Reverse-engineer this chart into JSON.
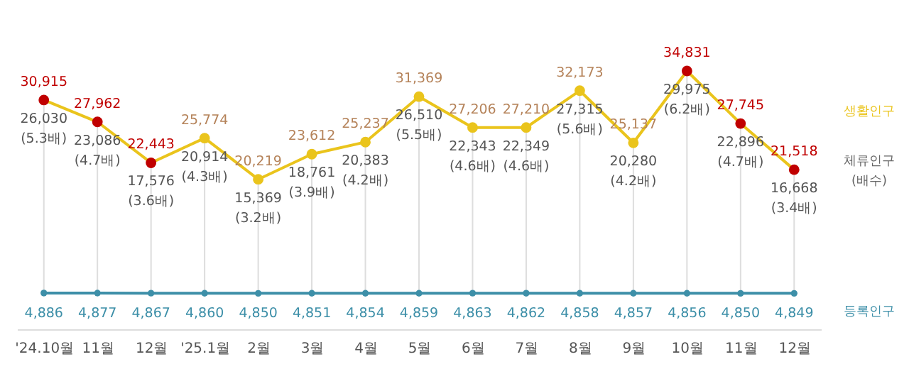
{
  "chart_data": {
    "type": "line",
    "categories": [
      "'24.10월",
      "11월",
      "12월",
      "'25.1월",
      "2월",
      "3월",
      "4월",
      "5월",
      "6월",
      "7월",
      "8월",
      "9월",
      "10월",
      "11월",
      "12월"
    ],
    "series": [
      {
        "name": "생활인구",
        "color": "#eac41c",
        "values": [
          30915,
          27962,
          22443,
          25774,
          20219,
          23612,
          25237,
          31369,
          27206,
          27210,
          32173,
          25137,
          34831,
          27745,
          21518
        ],
        "value_labels": [
          "30,915",
          "27,962",
          "22,443",
          "25,774",
          "20,219",
          "23,612",
          "25,237",
          "31,369",
          "27,206",
          "27,210",
          "32,173",
          "25,137",
          "34,831",
          "27,745",
          "21,518"
        ],
        "colors": [
          "#c00000",
          "#c00000",
          "#c00000",
          "#eac41c",
          "#eac41c",
          "#eac41c",
          "#eac41c",
          "#eac41c",
          "#eac41c",
          "#eac41c",
          "#eac41c",
          "#eac41c",
          "#c00000",
          "#c00000",
          "#c00000"
        ]
      },
      {
        "name": "등록인구",
        "color": "#3d8fa8",
        "values": [
          4886,
          4877,
          4867,
          4860,
          4850,
          4851,
          4854,
          4859,
          4863,
          4862,
          4858,
          4857,
          4856,
          4850,
          4849
        ],
        "value_labels": [
          "4,886",
          "4,877",
          "4,867",
          "4,860",
          "4,850",
          "4,851",
          "4,854",
          "4,859",
          "4,863",
          "4,862",
          "4,858",
          "4,857",
          "4,856",
          "4,850",
          "4,849"
        ]
      }
    ],
    "annotations": [
      {
        "text": "26,030\n(5.3배)",
        "x": "'24.10월",
        "y": 30915
      },
      {
        "text": "23,086\n(4.7배)",
        "x": "11월",
        "y": 27962
      },
      {
        "text": "17,576\n(3.6배)",
        "x": "12월",
        "y": 22443
      },
      {
        "text": "20,914\n(4.3배)",
        "x": "'25.1월",
        "y": 25774
      },
      {
        "text": "15,369\n(3.2배)",
        "x": "2월",
        "y": 20219
      },
      {
        "text": "18,761\n(3.9배)",
        "x": "3월",
        "y": 23612
      },
      {
        "text": "20,383\n(4.2배)",
        "x": "4월",
        "y": 25237
      },
      {
        "text": "26,510\n(5.5배)",
        "x": "5월",
        "y": 31369
      },
      {
        "text": "22,343\n(4.6배)",
        "x": "6월",
        "y": 27206
      },
      {
        "text": "22,349\n(4.6배)",
        "x": "7월",
        "y": 27210
      },
      {
        "text": "27,315\n(5.6배)",
        "x": "8월",
        "y": 32173
      },
      {
        "text": "20,280\n(4.2배)",
        "x": "9월",
        "y": 25137
      },
      {
        "text": "29,975\n(6.2배)",
        "x": "10월",
        "y": 34831
      },
      "22,896\n(4.7배)",
      "16,668\n(3.4배)",
      "체류인구\n(배수)"
    ],
    "tick_labels": "x",
    "grid": "x",
    "legend": "right",
    "marker": "circle",
    "line_style": "solid"
  }
}
